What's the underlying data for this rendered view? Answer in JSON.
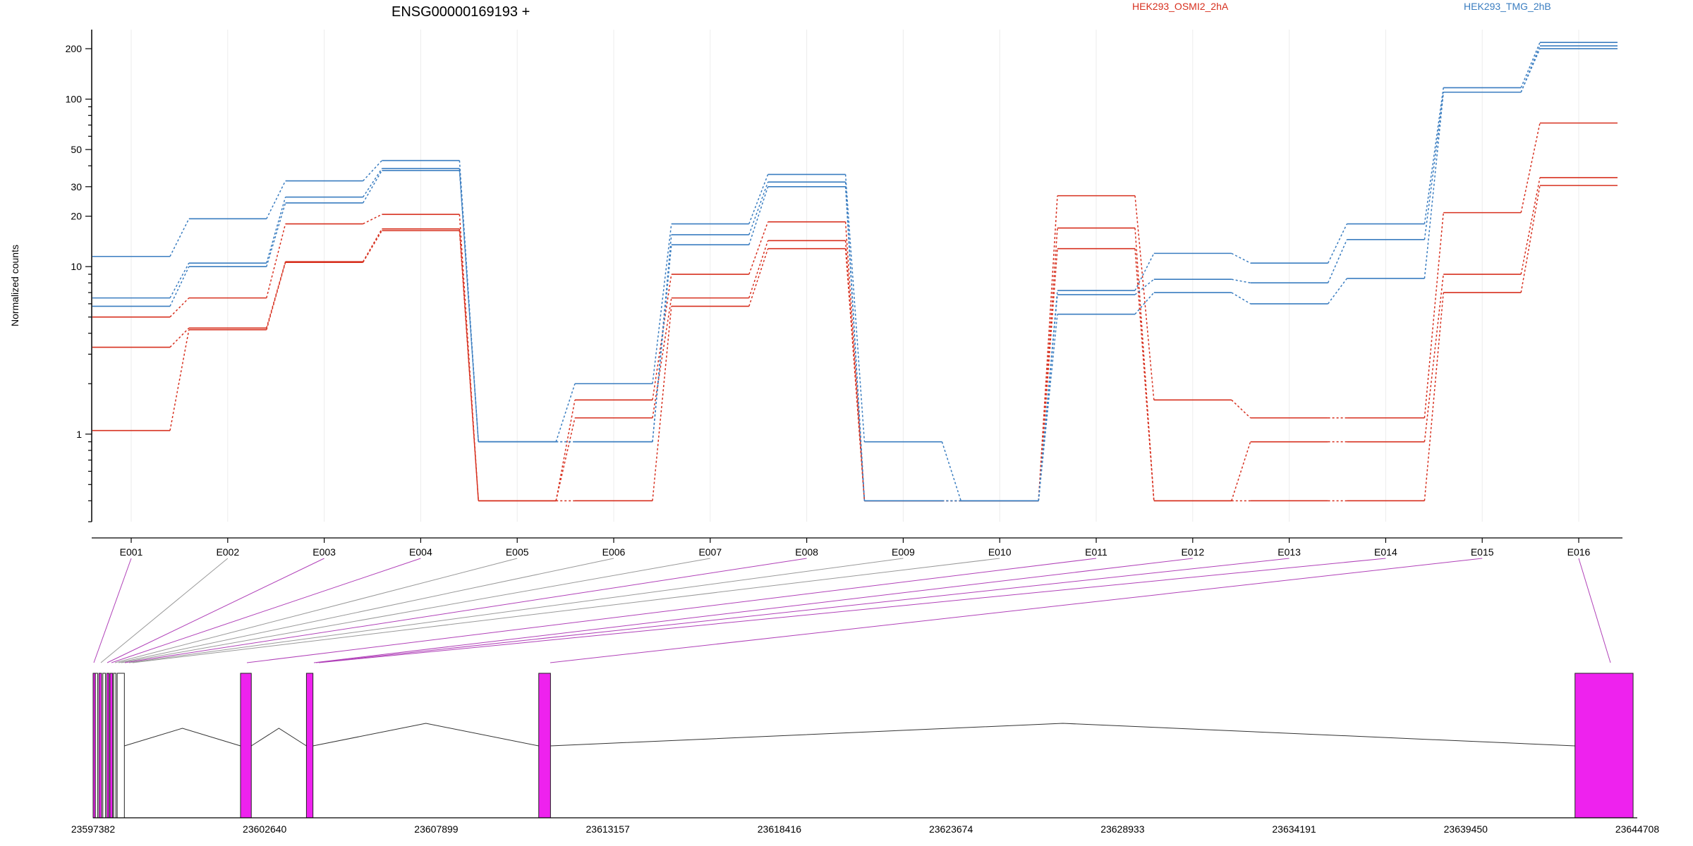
{
  "chart_data": {
    "type": "line",
    "title": "ENSG00000169193 +",
    "ylabel": "Normalized counts",
    "xlabel": "",
    "y_scale": "log",
    "ylim": [
      0.3,
      260
    ],
    "y_ticks": [
      1,
      10,
      20,
      30,
      50,
      100,
      200
    ],
    "grid": "vertical",
    "legend_placement": "top-right",
    "categories": [
      "E001",
      "E002",
      "E003",
      "E004",
      "E005",
      "E006",
      "E007",
      "E008",
      "E009",
      "E010",
      "E011",
      "E012",
      "E013",
      "E014",
      "E015",
      "E016"
    ],
    "series": [
      {
        "name": "HEK293_OSMI2_2hA",
        "color": "#d7301f",
        "values": [
          5,
          6.5,
          18,
          20.5,
          0.4,
          1.6,
          9,
          18.5,
          0.4,
          0.4,
          26.5,
          1.6,
          1.25,
          1.25,
          21,
          72
        ]
      },
      {
        "name": "",
        "color": "#d7301f",
        "values": [
          3.3,
          4.3,
          10.7,
          16.8,
          0.4,
          1.25,
          6.5,
          14.3,
          0.4,
          0.4,
          17,
          0.4,
          0.9,
          0.9,
          9,
          34
        ]
      },
      {
        "name": "",
        "color": "#d7301f",
        "values": [
          1.05,
          4.2,
          10.6,
          16.4,
          0.4,
          0.4,
          5.8,
          12.8,
          0.4,
          0.4,
          12.8,
          0.4,
          0.4,
          0.4,
          7,
          30.5
        ]
      },
      {
        "name": "HEK293_TMG_2hB",
        "color": "#3a7dc0",
        "values": [
          11.5,
          19.3,
          32.5,
          43,
          0.9,
          2,
          18,
          35.5,
          0.9,
          0.4,
          7.2,
          12,
          10.5,
          18,
          117,
          218
        ]
      },
      {
        "name": "",
        "color": "#3a7dc0",
        "values": [
          6.5,
          10.5,
          26,
          38.5,
          0.9,
          0.9,
          15.5,
          32,
          0.4,
          0.4,
          6.8,
          8.4,
          8,
          14.5,
          110,
          208
        ]
      },
      {
        "name": "",
        "color": "#3a7dc0",
        "values": [
          5.8,
          10,
          24,
          37.5,
          0.9,
          0.9,
          13.5,
          30,
          0.4,
          0.4,
          5.2,
          7,
          6,
          8.5,
          110,
          200
        ]
      }
    ],
    "gene_model": {
      "coordinate_ticks": [
        "23597382",
        "23602640",
        "23607899",
        "23613157",
        "23618416",
        "23623674",
        "23628933",
        "23634191",
        "23639450",
        "23644708"
      ],
      "tick_values": [
        23597382,
        23602640,
        23607899,
        23613157,
        23618416,
        23623674,
        23628933,
        23634191,
        23639450,
        23644708
      ],
      "exon_ranges": [
        [
          23597382,
          23597430
        ],
        [
          23597450,
          23597520
        ],
        [
          23597560,
          23597640
        ],
        [
          23597680,
          23597760
        ],
        [
          23597800,
          23597870
        ],
        [
          23597900,
          23597980
        ],
        [
          23598010,
          23598080
        ],
        [
          23598120,
          23598340
        ],
        [
          23601900,
          23602230
        ],
        [
          23603920,
          23604120
        ],
        [
          23611040,
          23611400
        ],
        [
          23642800,
          23644580
        ]
      ],
      "highlighted_color": "#ee22ee",
      "highlighted_exons": [
        "E001",
        "E003",
        "E004",
        "E008",
        "E011",
        "E012",
        "E013",
        "E014",
        "E015",
        "E016"
      ]
    }
  }
}
